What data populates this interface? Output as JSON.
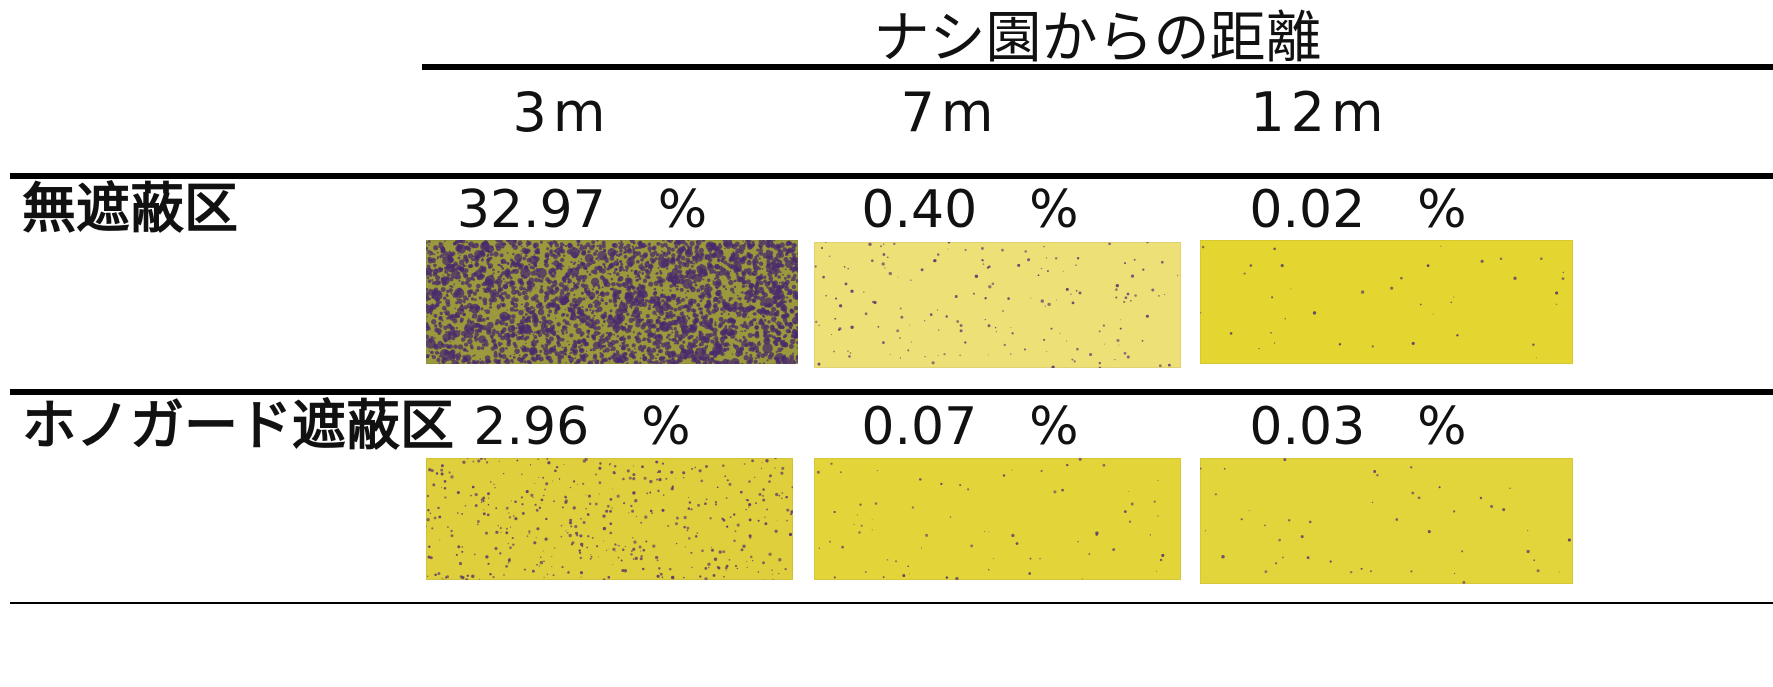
{
  "header": {
    "title": "ナシ園からの距離"
  },
  "columns": [
    "3m",
    "7m",
    "12m"
  ],
  "rows": [
    {
      "label": "無遮蔽区",
      "cells": [
        {
          "percent": "32.97　%",
          "coverage": 0.3297,
          "card_color": "#9a9a3c"
        },
        {
          "percent": "0.40　%",
          "coverage": 0.004,
          "card_color": "#ede077"
        },
        {
          "percent": "0.02　%",
          "coverage": 0.0002,
          "card_color": "#e4d530"
        }
      ]
    },
    {
      "label": "ホノガード遮蔽区",
      "cells": [
        {
          "percent": "2.96　%",
          "coverage": 0.0296,
          "card_color": "#e0cf3c"
        },
        {
          "percent": "0.07　%",
          "coverage": 0.0007,
          "card_color": "#e3d43a"
        },
        {
          "percent": "0.03　%",
          "coverage": 0.0003,
          "card_color": "#e2d53c"
        }
      ]
    }
  ],
  "colors": {
    "spot": "#4a2a6e",
    "rule": "#000000"
  }
}
